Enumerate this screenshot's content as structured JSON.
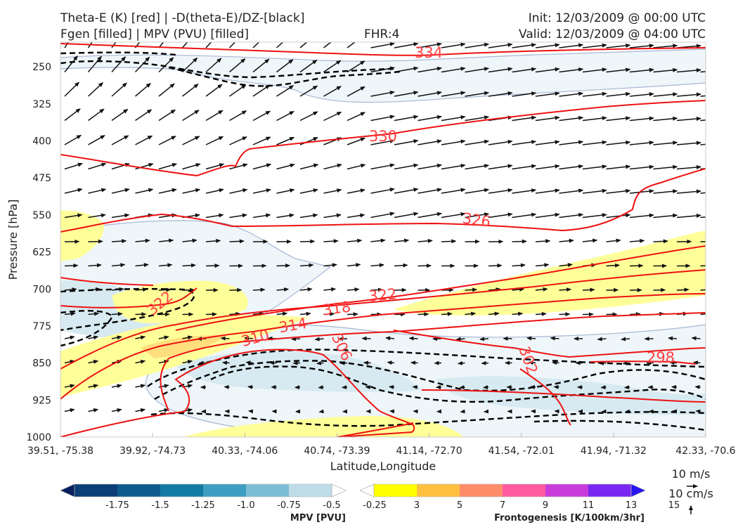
{
  "header": {
    "line1_left": "Theta-E (K) [red] | -D(theta-E)/DZ-[black]",
    "line2_left": "Fgen [filled] | MPV (PVU) [filled]",
    "fhr": "FHR:4",
    "init": "Init: 12/03/2009 @ 00:00 UTC",
    "valid": "Valid: 12/03/2009 @ 04:00 UTC"
  },
  "chart_data": {
    "type": "cross-section",
    "xlabel": "Latitude,Longitude",
    "ylabel": "Pressure [hPa]",
    "x_ticks": [
      "39.51, -75.38",
      "39.92, -74.73",
      "40.33, -74.06",
      "40.74, -73.39",
      "41.14, -72.70",
      "41.54, -72.01",
      "41.94, -71.32",
      "42.33, -70.6"
    ],
    "y_ticks": [
      250,
      325,
      400,
      475,
      550,
      625,
      700,
      775,
      850,
      925,
      1000
    ],
    "ylim": [
      200,
      1000
    ],
    "y_inverted": true,
    "theta_e_contour_labels": [
      "334",
      "330",
      "326",
      "322",
      "322",
      "318",
      "314",
      "310",
      "306",
      "302",
      "298"
    ],
    "vector_legend": {
      "wind": "10 m/s",
      "vertical": "10 cm/s"
    },
    "colorbars": [
      {
        "title": "MPV [PVU]",
        "tick_labels": [
          "-1.75",
          "-1.5",
          "-1.25",
          "-1.0",
          "-0.75",
          "-0.5",
          "-0.25"
        ],
        "colors": [
          "#08205e",
          "#0c3d75",
          "#0f5a8c",
          "#137ba3",
          "#3d9ec2",
          "#7dbcd5",
          "#bddce8",
          "#ffffff"
        ]
      },
      {
        "title": "Frontogenesis [K/100km/3hr]",
        "tick_labels": [
          "3",
          "5",
          "7",
          "9",
          "11",
          "13",
          "15"
        ],
        "colors": [
          "#ffffff",
          "#ffff00",
          "#ffc040",
          "#ff8c6a",
          "#ff5aa0",
          "#c83cdc",
          "#7828f0",
          "#2814f0"
        ]
      }
    ],
    "grid": false
  }
}
